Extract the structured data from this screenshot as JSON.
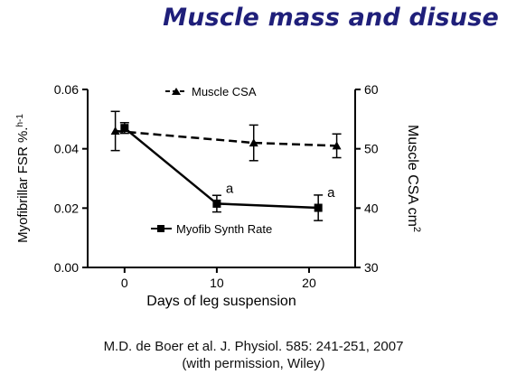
{
  "slide": {
    "title": "Muscle mass and disuse",
    "citation_line1": "M.D. de Boer et al.  J. Physiol. 585: 241-251, 2007",
    "citation_line2": "(with permission, Wiley)"
  },
  "colors": {
    "title": "#1f1f7a",
    "ink": "#000000"
  },
  "chart_data": {
    "type": "line",
    "xlabel": "Days of leg suspension",
    "ylabel_left": "Myofibrillar FSR %.h-1",
    "ylabel_left_text": "Myofibrillar FSR %.",
    "ylabel_left_sup": "h-1",
    "ylabel_right": "Muscle CSA cm2",
    "ylabel_right_text": "Muscle CSA cm",
    "ylabel_right_sup": "2",
    "x_ticks": [
      0,
      10,
      20
    ],
    "xlim": [
      -4,
      25
    ],
    "ylim_left": [
      0,
      0.06
    ],
    "ylim_right": [
      30,
      60
    ],
    "y_ticks_left": [
      "0.00",
      "0.02",
      "0.04",
      "0.06"
    ],
    "y_ticks_right": [
      "30",
      "40",
      "50",
      "60"
    ],
    "legend_position": "inside",
    "series": [
      {
        "name": "Muscle CSA",
        "axis": "right",
        "marker": "triangle",
        "line_style": "dashed",
        "x": [
          -1,
          14,
          23
        ],
        "y": [
          53.0,
          51.0,
          50.5
        ],
        "error": [
          3.3,
          3.0,
          2.0
        ]
      },
      {
        "name": "Myofib Synth Rate",
        "axis": "left",
        "marker": "square",
        "line_style": "solid",
        "x": [
          0,
          10,
          21
        ],
        "y": [
          0.047,
          0.0215,
          0.0201
        ],
        "error": [
          0.0018,
          0.0028,
          0.0043
        ]
      }
    ],
    "annotations": [
      {
        "text": "a",
        "x": 10,
        "y": 0.0215,
        "axis": "left"
      },
      {
        "text": "a",
        "x": 21,
        "y": 0.0201,
        "axis": "left"
      }
    ]
  }
}
